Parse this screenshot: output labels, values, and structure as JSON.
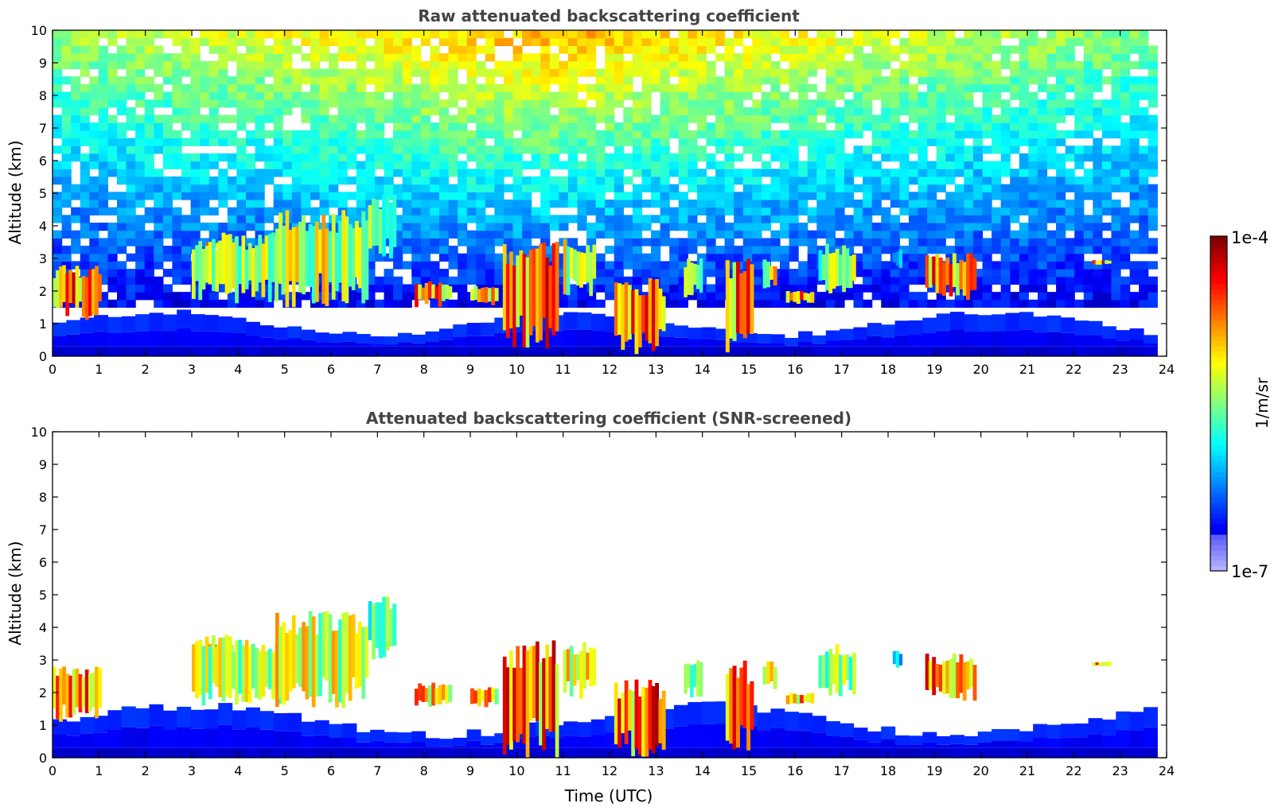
{
  "chart_data": [
    {
      "type": "heatmap",
      "title": "Raw attenuated backscattering coefficient",
      "xlabel": "",
      "ylabel": "Altitude (km)",
      "xlim": [
        0,
        24
      ],
      "ylim": [
        0,
        10
      ],
      "xticks": [
        "0",
        "1",
        "2",
        "3",
        "4",
        "5",
        "6",
        "7",
        "8",
        "9",
        "10",
        "11",
        "12",
        "13",
        "14",
        "15",
        "16",
        "17",
        "18",
        "19",
        "20",
        "21",
        "22",
        "23",
        "24"
      ],
      "yticks": [
        "0",
        "1",
        "2",
        "3",
        "4",
        "5",
        "6",
        "7",
        "8",
        "9",
        "10"
      ],
      "data_end_time": 23.8,
      "grid": false,
      "colormap": "jet",
      "background_noise": true,
      "features": [
        {
          "t0": 0.0,
          "t1": 1.05,
          "bottom": 1.1,
          "top": 2.8,
          "peak": 0.95
        },
        {
          "t0": 3.3,
          "t1": 3.9,
          "bottom": 3.3,
          "top": 3.5,
          "peak": 0.95
        },
        {
          "t0": 3.0,
          "t1": 5.0,
          "bottom": 1.6,
          "top": 3.8,
          "peak": 0.7
        },
        {
          "t0": 4.8,
          "t1": 6.8,
          "bottom": 1.5,
          "top": 4.5,
          "peak": 0.75
        },
        {
          "t0": 6.8,
          "t1": 7.4,
          "bottom": 3.0,
          "top": 5.0,
          "peak": 0.6
        },
        {
          "t0": 7.8,
          "t1": 8.6,
          "bottom": 1.5,
          "top": 2.3,
          "peak": 0.9
        },
        {
          "t0": 9.0,
          "t1": 9.6,
          "bottom": 1.5,
          "top": 2.2,
          "peak": 0.85
        },
        {
          "t0": 9.7,
          "t1": 10.9,
          "bottom": 0.0,
          "top": 3.6,
          "peak": 0.95
        },
        {
          "t0": 11.0,
          "t1": 11.7,
          "bottom": 1.8,
          "top": 3.6,
          "peak": 0.75
        },
        {
          "t0": 12.1,
          "t1": 13.2,
          "bottom": 0.0,
          "top": 2.4,
          "peak": 0.97
        },
        {
          "t0": 13.6,
          "t1": 14.0,
          "bottom": 1.8,
          "top": 3.0,
          "peak": 0.6
        },
        {
          "t0": 14.5,
          "t1": 15.1,
          "bottom": 0.0,
          "top": 3.0,
          "peak": 0.95
        },
        {
          "t0": 15.3,
          "t1": 15.6,
          "bottom": 2.0,
          "top": 3.0,
          "peak": 0.8
        },
        {
          "t0": 15.8,
          "t1": 16.4,
          "bottom": 1.6,
          "top": 2.0,
          "peak": 0.9
        },
        {
          "t0": 16.5,
          "t1": 17.3,
          "bottom": 1.8,
          "top": 3.5,
          "peak": 0.65
        },
        {
          "t0": 18.1,
          "t1": 18.3,
          "bottom": 2.7,
          "top": 3.3,
          "peak": 0.4
        },
        {
          "t0": 18.8,
          "t1": 19.9,
          "bottom": 1.7,
          "top": 3.2,
          "peak": 0.95
        },
        {
          "t0": 22.4,
          "t1": 22.8,
          "bottom": 2.8,
          "top": 2.95,
          "peak": 0.9
        }
      ]
    },
    {
      "type": "heatmap",
      "title": "Attenuated backscattering coefficient (SNR-screened)",
      "xlabel": "Time (UTC)",
      "ylabel": "Altitude (km)",
      "xlim": [
        0,
        24
      ],
      "ylim": [
        0,
        10
      ],
      "xticks": [
        "0",
        "1",
        "2",
        "3",
        "4",
        "5",
        "6",
        "7",
        "8",
        "9",
        "10",
        "11",
        "12",
        "13",
        "14",
        "15",
        "16",
        "17",
        "18",
        "19",
        "20",
        "21",
        "22",
        "23",
        "24"
      ],
      "yticks": [
        "0",
        "1",
        "2",
        "3",
        "4",
        "5",
        "6",
        "7",
        "8",
        "9",
        "10"
      ],
      "data_end_time": 23.8,
      "grid": false,
      "colormap": "jet",
      "background_noise": false,
      "features": [
        {
          "t0": 0.0,
          "t1": 1.05,
          "bottom": 1.1,
          "top": 2.8,
          "peak": 0.95
        },
        {
          "t0": 3.3,
          "t1": 3.9,
          "bottom": 3.3,
          "top": 3.5,
          "peak": 0.95
        },
        {
          "t0": 3.0,
          "t1": 5.0,
          "bottom": 1.6,
          "top": 3.8,
          "peak": 0.7
        },
        {
          "t0": 4.8,
          "t1": 6.8,
          "bottom": 1.5,
          "top": 4.5,
          "peak": 0.75
        },
        {
          "t0": 6.8,
          "t1": 7.4,
          "bottom": 3.0,
          "top": 5.0,
          "peak": 0.6
        },
        {
          "t0": 7.8,
          "t1": 8.6,
          "bottom": 1.5,
          "top": 2.3,
          "peak": 0.9
        },
        {
          "t0": 9.0,
          "t1": 9.6,
          "bottom": 1.5,
          "top": 2.2,
          "peak": 0.85
        },
        {
          "t0": 9.7,
          "t1": 10.9,
          "bottom": 0.0,
          "top": 3.6,
          "peak": 0.95
        },
        {
          "t0": 11.0,
          "t1": 11.7,
          "bottom": 1.8,
          "top": 3.6,
          "peak": 0.75
        },
        {
          "t0": 12.1,
          "t1": 13.2,
          "bottom": 0.0,
          "top": 2.4,
          "peak": 0.97
        },
        {
          "t0": 13.6,
          "t1": 14.0,
          "bottom": 1.8,
          "top": 3.0,
          "peak": 0.6
        },
        {
          "t0": 14.5,
          "t1": 15.1,
          "bottom": 0.0,
          "top": 3.0,
          "peak": 0.95
        },
        {
          "t0": 15.3,
          "t1": 15.6,
          "bottom": 2.0,
          "top": 3.0,
          "peak": 0.8
        },
        {
          "t0": 15.8,
          "t1": 16.4,
          "bottom": 1.6,
          "top": 2.0,
          "peak": 0.9
        },
        {
          "t0": 16.5,
          "t1": 17.3,
          "bottom": 1.8,
          "top": 3.5,
          "peak": 0.65
        },
        {
          "t0": 18.1,
          "t1": 18.3,
          "bottom": 2.7,
          "top": 3.3,
          "peak": 0.4
        },
        {
          "t0": 18.8,
          "t1": 19.9,
          "bottom": 1.7,
          "top": 3.2,
          "peak": 0.95
        },
        {
          "t0": 22.4,
          "t1": 22.8,
          "bottom": 2.8,
          "top": 2.95,
          "peak": 0.9
        }
      ]
    }
  ],
  "colorbar": {
    "top_label": "1e-4",
    "bottom_label": "1e-7",
    "unit": "1/m/sr",
    "colormap": "jet"
  }
}
